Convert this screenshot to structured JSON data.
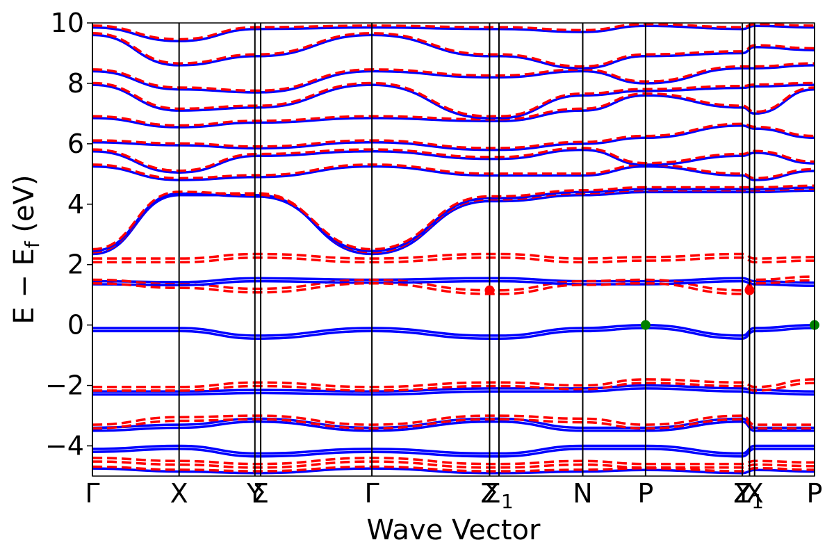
{
  "chart_data": {
    "type": "line",
    "title": "",
    "xlabel": "Wave Vector",
    "ylabel": "E − E",
    "ylabel_subscript": "f",
    "ylabel_unit": " (eV)",
    "ylim": [
      -5,
      10
    ],
    "yticks": [
      -4,
      -2,
      0,
      2,
      4,
      6,
      8,
      10
    ],
    "ytick_labels": [
      "−4",
      "−2",
      "0",
      "2",
      "4",
      "6",
      "8",
      "10"
    ],
    "xlim": [
      0,
      1
    ],
    "kpath": [
      {
        "pos": 0.0,
        "label": "Γ"
      },
      {
        "pos": 0.12,
        "label": "X"
      },
      {
        "pos": 0.225,
        "label": "Y"
      },
      {
        "pos": 0.233,
        "label": "Σ"
      },
      {
        "pos": 0.387,
        "label": "Γ"
      },
      {
        "pos": 0.55,
        "label": "Z"
      },
      {
        "pos": 0.563,
        "label": "Σ",
        "sub": "1"
      },
      {
        "pos": 0.679,
        "label": "N"
      },
      {
        "pos": 0.766,
        "label": "P"
      },
      {
        "pos": 0.9,
        "label": "Z"
      },
      {
        "pos": 0.91,
        "label": "Y",
        "sub": "1"
      },
      {
        "pos": 0.917,
        "label": "X"
      },
      {
        "pos": 1.0,
        "label": "P"
      }
    ],
    "legend": "none",
    "grid": false,
    "series_style": [
      {
        "color": "#0000ff",
        "dash": "solid"
      },
      {
        "color": "#ff0000",
        "dash": "dashed"
      }
    ],
    "bands": [
      [
        [
          0.0,
          2.35
        ],
        [
          0.12,
          4.3
        ],
        [
          0.229,
          4.3
        ],
        [
          0.387,
          2.35
        ],
        [
          0.55,
          4.1
        ],
        [
          0.563,
          4.1
        ],
        [
          0.679,
          4.3
        ],
        [
          0.766,
          4.4
        ],
        [
          0.9,
          4.4
        ],
        [
          0.917,
          4.4
        ],
        [
          1.0,
          4.45
        ]
      ],
      [
        [
          0.0,
          2.45
        ],
        [
          0.12,
          4.35
        ],
        [
          0.229,
          4.25
        ],
        [
          0.387,
          2.45
        ],
        [
          0.55,
          4.2
        ],
        [
          0.563,
          4.2
        ],
        [
          0.679,
          4.4
        ],
        [
          0.766,
          4.5
        ],
        [
          0.9,
          4.5
        ],
        [
          0.917,
          4.5
        ],
        [
          1.0,
          4.55
        ]
      ],
      [
        [
          0.0,
          5.25
        ],
        [
          0.12,
          4.8
        ],
        [
          0.229,
          4.9
        ],
        [
          0.387,
          5.25
        ],
        [
          0.55,
          4.95
        ],
        [
          0.563,
          4.95
        ],
        [
          0.679,
          4.95
        ],
        [
          0.766,
          5.25
        ],
        [
          0.9,
          4.95
        ],
        [
          0.917,
          4.8
        ],
        [
          1.0,
          5.1
        ]
      ],
      [
        [
          0.0,
          5.75
        ],
        [
          0.12,
          5.05
        ],
        [
          0.229,
          5.6
        ],
        [
          0.387,
          5.75
        ],
        [
          0.55,
          5.5
        ],
        [
          0.563,
          5.5
        ],
        [
          0.679,
          5.8
        ],
        [
          0.766,
          5.3
        ],
        [
          0.9,
          5.6
        ],
        [
          0.917,
          5.7
        ],
        [
          1.0,
          5.35
        ]
      ],
      [
        [
          0.0,
          6.05
        ],
        [
          0.12,
          5.95
        ],
        [
          0.229,
          5.85
        ],
        [
          0.387,
          6.05
        ],
        [
          0.55,
          5.8
        ],
        [
          0.563,
          5.8
        ],
        [
          0.679,
          6.0
        ],
        [
          0.766,
          6.2
        ],
        [
          0.9,
          6.6
        ],
        [
          0.917,
          6.5
        ],
        [
          1.0,
          6.2
        ]
      ],
      [
        [
          0.0,
          6.85
        ],
        [
          0.12,
          6.55
        ],
        [
          0.229,
          6.7
        ],
        [
          0.387,
          6.85
        ],
        [
          0.55,
          6.75
        ],
        [
          0.563,
          6.75
        ],
        [
          0.679,
          7.1
        ],
        [
          0.766,
          7.6
        ],
        [
          0.9,
          7.2
        ],
        [
          0.917,
          7.0
        ],
        [
          1.0,
          7.8
        ]
      ],
      [
        [
          0.0,
          7.95
        ],
        [
          0.12,
          7.1
        ],
        [
          0.229,
          7.2
        ],
        [
          0.387,
          7.95
        ],
        [
          0.55,
          6.85
        ],
        [
          0.563,
          6.85
        ],
        [
          0.679,
          7.6
        ],
        [
          0.766,
          7.75
        ],
        [
          0.9,
          7.85
        ],
        [
          0.917,
          7.9
        ],
        [
          1.0,
          7.95
        ]
      ],
      [
        [
          0.0,
          8.4
        ],
        [
          0.12,
          7.8
        ],
        [
          0.229,
          7.7
        ],
        [
          0.387,
          8.4
        ],
        [
          0.55,
          8.2
        ],
        [
          0.563,
          8.2
        ],
        [
          0.679,
          8.4
        ],
        [
          0.766,
          8.0
        ],
        [
          0.9,
          8.5
        ],
        [
          0.917,
          8.5
        ],
        [
          1.0,
          8.6
        ]
      ],
      [
        [
          0.0,
          9.6
        ],
        [
          0.12,
          8.6
        ],
        [
          0.229,
          8.9
        ],
        [
          0.387,
          9.6
        ],
        [
          0.55,
          8.9
        ],
        [
          0.563,
          8.9
        ],
        [
          0.679,
          8.5
        ],
        [
          0.766,
          8.9
        ],
        [
          0.9,
          9.0
        ],
        [
          0.917,
          9.2
        ],
        [
          1.0,
          9.1
        ]
      ],
      [
        [
          0.0,
          9.85
        ],
        [
          0.12,
          9.4
        ],
        [
          0.229,
          9.8
        ],
        [
          0.387,
          9.85
        ],
        [
          0.55,
          9.8
        ],
        [
          0.563,
          9.8
        ],
        [
          0.679,
          9.7
        ],
        [
          0.766,
          9.9
        ],
        [
          0.9,
          9.8
        ],
        [
          0.917,
          9.9
        ],
        [
          1.0,
          9.85
        ]
      ],
      [
        [
          0.0,
          -4.75
        ],
        [
          0.12,
          -4.85
        ],
        [
          0.229,
          -4.9
        ],
        [
          0.387,
          -4.75
        ],
        [
          0.55,
          -4.9
        ],
        [
          0.563,
          -4.9
        ],
        [
          0.679,
          -4.85
        ],
        [
          0.766,
          -4.8
        ],
        [
          0.9,
          -4.9
        ],
        [
          0.917,
          -4.8
        ],
        [
          1.0,
          -4.85
        ]
      ]
    ],
    "series": [
      {
        "bands": [
          [
            [
              0.0,
              1.45
            ],
            [
              0.12,
              1.42
            ],
            [
              0.229,
              1.55
            ],
            [
              0.387,
              1.5
            ],
            [
              0.55,
              1.55
            ],
            [
              0.563,
              1.55
            ],
            [
              0.679,
              1.45
            ],
            [
              0.766,
              1.45
            ],
            [
              0.9,
              1.55
            ],
            [
              0.917,
              1.45
            ],
            [
              1.0,
              1.4
            ]
          ],
          [
            [
              0.0,
              -0.1
            ],
            [
              0.12,
              -0.1
            ],
            [
              0.229,
              -0.35
            ],
            [
              0.387,
              -0.1
            ],
            [
              0.55,
              -0.35
            ],
            [
              0.563,
              -0.35
            ],
            [
              0.679,
              -0.1
            ],
            [
              0.766,
              0.0
            ],
            [
              0.9,
              -0.35
            ],
            [
              0.917,
              -0.1
            ],
            [
              1.0,
              0.0
            ]
          ],
          [
            [
              0.0,
              -2.2
            ],
            [
              0.12,
              -2.2
            ],
            [
              0.229,
              -2.15
            ],
            [
              0.387,
              -2.2
            ],
            [
              0.55,
              -2.1
            ],
            [
              0.563,
              -2.1
            ],
            [
              0.679,
              -2.1
            ],
            [
              0.766,
              -2.0
            ],
            [
              0.9,
              -2.1
            ],
            [
              0.917,
              -2.15
            ],
            [
              1.0,
              -2.2
            ]
          ],
          [
            [
              0.0,
              -3.4
            ],
            [
              0.12,
              -3.3
            ],
            [
              0.229,
              -3.1
            ],
            [
              0.387,
              -3.4
            ],
            [
              0.55,
              -3.1
            ],
            [
              0.563,
              -3.1
            ],
            [
              0.679,
              -3.4
            ],
            [
              0.766,
              -3.4
            ],
            [
              0.9,
              -3.1
            ],
            [
              0.917,
              -3.4
            ],
            [
              1.0,
              -3.4
            ]
          ],
          [
            [
              0.0,
              -4.1
            ],
            [
              0.12,
              -4.0
            ],
            [
              0.229,
              -4.25
            ],
            [
              0.387,
              -4.1
            ],
            [
              0.55,
              -4.25
            ],
            [
              0.563,
              -4.25
            ],
            [
              0.679,
              -4.0
            ],
            [
              0.766,
              -4.0
            ],
            [
              0.9,
              -4.25
            ],
            [
              0.917,
              -4.0
            ],
            [
              1.0,
              -4.0
            ]
          ]
        ]
      },
      {
        "bands": [
          [
            [
              0.0,
              2.2
            ],
            [
              0.12,
              2.2
            ],
            [
              0.229,
              2.35
            ],
            [
              0.387,
              2.2
            ],
            [
              0.55,
              2.35
            ],
            [
              0.563,
              2.35
            ],
            [
              0.679,
              2.2
            ],
            [
              0.766,
              2.25
            ],
            [
              0.9,
              2.35
            ],
            [
              0.917,
              2.2
            ],
            [
              1.0,
              2.25
            ]
          ],
          [
            [
              0.0,
              1.5
            ],
            [
              0.12,
              1.35
            ],
            [
              0.229,
              1.2
            ],
            [
              0.387,
              1.5
            ],
            [
              0.55,
              1.15
            ],
            [
              0.563,
              1.15
            ],
            [
              0.679,
              1.45
            ],
            [
              0.766,
              1.5
            ],
            [
              0.9,
              1.15
            ],
            [
              0.917,
              1.5
            ],
            [
              1.0,
              1.6
            ]
          ],
          [
            [
              0.0,
              -2.05
            ],
            [
              0.12,
              -2.05
            ],
            [
              0.229,
              -1.9
            ],
            [
              0.387,
              -2.05
            ],
            [
              0.55,
              -1.9
            ],
            [
              0.563,
              -1.9
            ],
            [
              0.679,
              -2.0
            ],
            [
              0.766,
              -1.8
            ],
            [
              0.9,
              -1.9
            ],
            [
              0.917,
              -2.05
            ],
            [
              1.0,
              -1.8
            ]
          ],
          [
            [
              0.0,
              -3.3
            ],
            [
              0.12,
              -3.05
            ],
            [
              0.229,
              -3.0
            ],
            [
              0.387,
              -3.3
            ],
            [
              0.55,
              -3.0
            ],
            [
              0.563,
              -3.0
            ],
            [
              0.679,
              -3.1
            ],
            [
              0.766,
              -3.3
            ],
            [
              0.9,
              -3.0
            ],
            [
              0.917,
              -3.3
            ],
            [
              1.0,
              -3.3
            ]
          ],
          [
            [
              0.0,
              -4.4
            ],
            [
              0.12,
              -4.5
            ],
            [
              0.229,
              -4.6
            ],
            [
              0.387,
              -4.4
            ],
            [
              0.55,
              -4.6
            ],
            [
              0.563,
              -4.6
            ],
            [
              0.679,
              -4.5
            ],
            [
              0.766,
              -4.6
            ],
            [
              0.9,
              -4.6
            ],
            [
              0.917,
              -4.5
            ],
            [
              1.0,
              -4.55
            ]
          ]
        ]
      }
    ],
    "markers": [
      {
        "x": 0.55,
        "y": 1.15,
        "color": "#ff0000"
      },
      {
        "x": 0.91,
        "y": 1.15,
        "color": "#ff0000"
      },
      {
        "x": 0.766,
        "y": 0.0,
        "color": "#008000"
      },
      {
        "x": 1.0,
        "y": 0.0,
        "color": "#008000"
      }
    ]
  }
}
